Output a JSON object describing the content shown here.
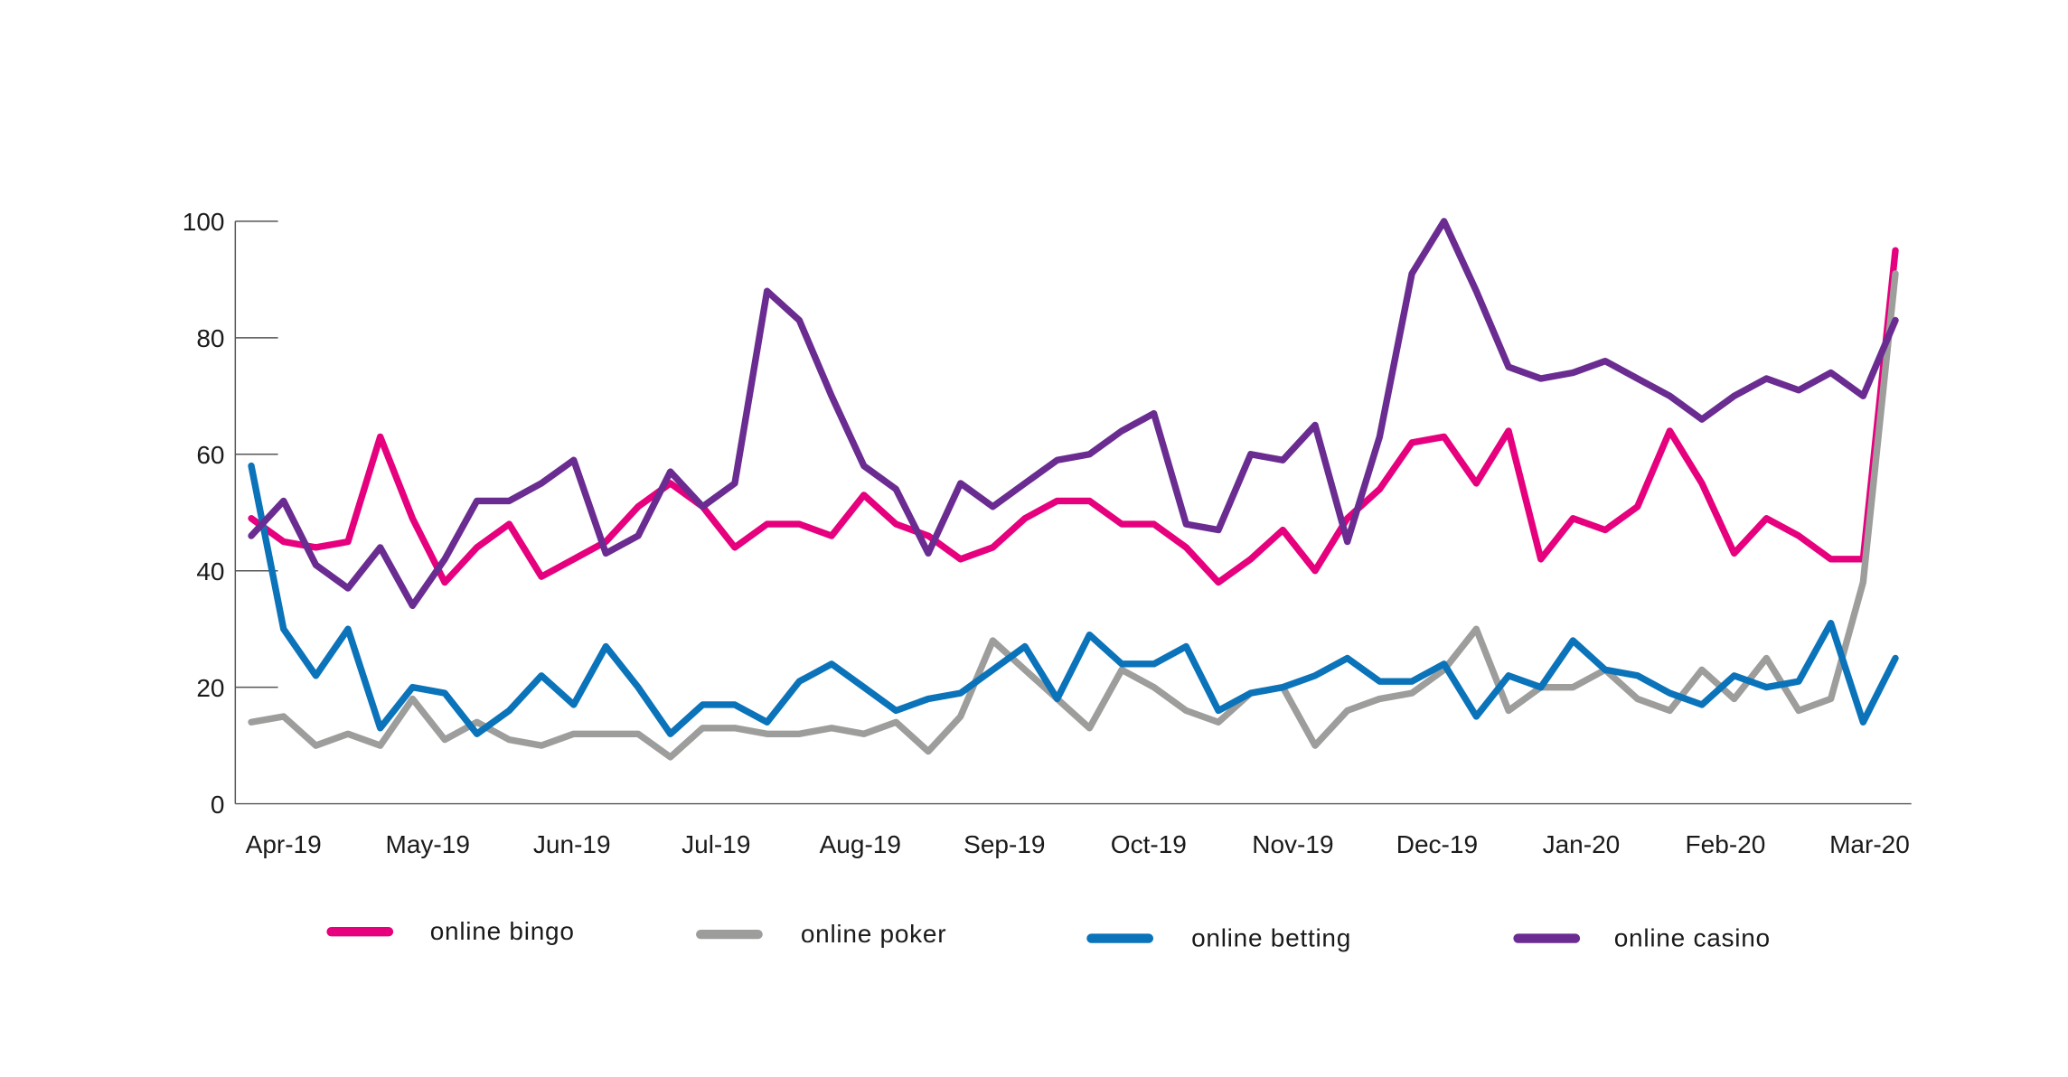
{
  "chart_data": {
    "type": "line",
    "title": "",
    "xlabel": "",
    "ylabel": "",
    "ylim": [
      0,
      100
    ],
    "yticks": [
      0,
      20,
      40,
      60,
      80,
      100
    ],
    "grid": false,
    "legend_position": "bottom",
    "x_tick_labels": [
      "Apr-19",
      "May-19",
      "Jun-19",
      "Jul-19",
      "Aug-19",
      "Sep-19",
      "Oct-19",
      "Nov-19",
      "Dec-19",
      "Jan-20",
      "Feb-20",
      "Mar-20"
    ],
    "points_per_series": 52,
    "series": [
      {
        "name": "online bingo",
        "color": "#e6007e",
        "values": [
          49,
          45,
          44,
          45,
          63,
          49,
          38,
          44,
          48,
          39,
          42,
          45,
          51,
          55,
          51,
          44,
          48,
          48,
          46,
          53,
          48,
          46,
          42,
          44,
          49,
          52,
          52,
          48,
          48,
          44,
          38,
          42,
          47,
          40,
          49,
          54,
          62,
          63,
          55,
          64,
          42,
          49,
          47,
          51,
          64,
          55,
          43,
          49,
          46,
          42,
          42,
          95
        ]
      },
      {
        "name": "online poker",
        "color": "#9d9d9c",
        "values": [
          14,
          15,
          10,
          12,
          10,
          18,
          11,
          14,
          11,
          10,
          12,
          12,
          12,
          8,
          13,
          13,
          12,
          12,
          13,
          12,
          14,
          9,
          15,
          28,
          23,
          18,
          13,
          23,
          20,
          16,
          14,
          19,
          20,
          10,
          16,
          18,
          19,
          23,
          30,
          16,
          20,
          20,
          23,
          18,
          16,
          23,
          18,
          25,
          16,
          18,
          38,
          91
        ]
      },
      {
        "name": "online betting",
        "color": "#0b73b9",
        "values": [
          58,
          30,
          22,
          30,
          13,
          20,
          19,
          12,
          16,
          22,
          17,
          27,
          20,
          12,
          17,
          17,
          14,
          21,
          24,
          20,
          16,
          18,
          19,
          23,
          27,
          18,
          29,
          24,
          24,
          27,
          16,
          19,
          20,
          22,
          25,
          21,
          21,
          24,
          15,
          22,
          20,
          28,
          23,
          22,
          19,
          17,
          22,
          20,
          21,
          31,
          14,
          25
        ]
      },
      {
        "name": "online casino",
        "color": "#6a2c91",
        "values": [
          46,
          52,
          41,
          37,
          44,
          34,
          42,
          52,
          52,
          55,
          59,
          43,
          46,
          57,
          51,
          55,
          88,
          83,
          70,
          58,
          54,
          43,
          55,
          51,
          55,
          59,
          60,
          64,
          67,
          48,
          47,
          60,
          59,
          65,
          45,
          63,
          91,
          100,
          88,
          75,
          73,
          74,
          76,
          73,
          70,
          66,
          70,
          73,
          71,
          74,
          70,
          83
        ]
      }
    ]
  }
}
